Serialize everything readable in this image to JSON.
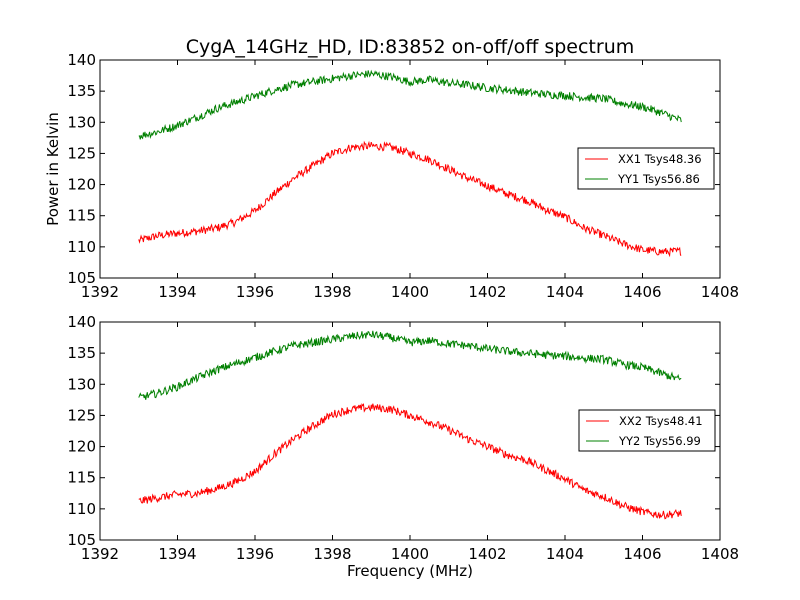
{
  "title": "CygA_14GHz_HD, ID:83852 on-off/off spectrum",
  "chart_data": [
    {
      "type": "line",
      "title": "CygA_14GHz_HD, ID:83852 on-off/off spectrum",
      "xlabel": "",
      "ylabel": "Power in Kelvin",
      "xlim": [
        1392,
        1408
      ],
      "ylim": [
        105,
        140
      ],
      "x_ticks": [
        "1392",
        "1394",
        "1396",
        "1398",
        "1400",
        "1402",
        "1404",
        "1406",
        "1408"
      ],
      "y_ticks": [
        "105",
        "110",
        "115",
        "120",
        "125",
        "130",
        "135",
        "140"
      ],
      "grid": false,
      "legend_position": "center-right",
      "series": [
        {
          "name": "XX1 Tsys48.36",
          "color": "#ff0000",
          "x": [
            1393.0,
            1393.5,
            1394.0,
            1394.5,
            1395.0,
            1395.5,
            1396.0,
            1396.5,
            1397.0,
            1397.5,
            1398.0,
            1398.5,
            1399.0,
            1399.5,
            1400.0,
            1400.5,
            1401.0,
            1401.5,
            1402.0,
            1402.5,
            1403.0,
            1403.5,
            1404.0,
            1404.5,
            1405.0,
            1405.5,
            1406.0,
            1406.5,
            1407.0
          ],
          "values": [
            111.0,
            111.8,
            112.2,
            112.5,
            113.0,
            114.0,
            115.8,
            118.5,
            121.0,
            123.0,
            125.0,
            126.0,
            126.2,
            126.0,
            125.0,
            124.0,
            122.5,
            121.0,
            119.8,
            118.5,
            117.5,
            116.0,
            114.8,
            113.0,
            111.8,
            110.5,
            109.5,
            109.2,
            109.3
          ]
        },
        {
          "name": "YY1 Tsys56.86",
          "color": "#008000",
          "x": [
            1393.0,
            1393.5,
            1394.0,
            1394.5,
            1395.0,
            1395.5,
            1396.0,
            1396.5,
            1397.0,
            1397.5,
            1398.0,
            1398.5,
            1399.0,
            1399.5,
            1400.0,
            1400.5,
            1401.0,
            1401.5,
            1402.0,
            1402.5,
            1403.0,
            1403.5,
            1404.0,
            1404.5,
            1405.0,
            1405.5,
            1406.0,
            1406.5,
            1407.0
          ],
          "values": [
            127.8,
            128.5,
            129.5,
            130.8,
            132.2,
            133.2,
            134.2,
            135.2,
            136.0,
            136.5,
            137.0,
            137.5,
            137.8,
            137.3,
            136.5,
            136.8,
            136.3,
            136.0,
            135.5,
            135.2,
            134.8,
            134.5,
            134.3,
            134.0,
            133.8,
            133.0,
            132.5,
            131.5,
            130.3
          ]
        }
      ]
    },
    {
      "type": "line",
      "title": "",
      "xlabel": "Frequency (MHz)",
      "ylabel": "",
      "xlim": [
        1392,
        1408
      ],
      "ylim": [
        105,
        140
      ],
      "x_ticks": [
        "1392",
        "1394",
        "1396",
        "1398",
        "1400",
        "1402",
        "1404",
        "1406",
        "1408"
      ],
      "y_ticks": [
        "105",
        "110",
        "115",
        "120",
        "125",
        "130",
        "135",
        "140"
      ],
      "grid": false,
      "legend_position": "center-right",
      "series": [
        {
          "name": "XX2 Tsys48.41",
          "color": "#ff0000",
          "x": [
            1393.0,
            1393.5,
            1394.0,
            1394.5,
            1395.0,
            1395.5,
            1396.0,
            1396.5,
            1397.0,
            1397.5,
            1398.0,
            1398.5,
            1399.0,
            1399.5,
            1400.0,
            1400.5,
            1401.0,
            1401.5,
            1402.0,
            1402.5,
            1403.0,
            1403.5,
            1404.0,
            1404.5,
            1405.0,
            1405.5,
            1406.0,
            1406.5,
            1407.0
          ],
          "values": [
            111.2,
            111.8,
            112.3,
            112.5,
            113.2,
            114.3,
            116.0,
            118.8,
            121.2,
            123.3,
            125.2,
            126.0,
            126.3,
            126.0,
            125.0,
            124.0,
            122.7,
            121.2,
            120.0,
            118.7,
            117.8,
            116.3,
            114.8,
            113.0,
            112.0,
            110.5,
            109.5,
            109.0,
            109.3
          ]
        },
        {
          "name": "YY2 Tsys56.99",
          "color": "#008000",
          "x": [
            1393.0,
            1393.5,
            1394.0,
            1394.5,
            1395.0,
            1395.5,
            1396.0,
            1396.5,
            1397.0,
            1397.5,
            1398.0,
            1398.5,
            1399.0,
            1399.5,
            1400.0,
            1400.5,
            1401.0,
            1401.5,
            1402.0,
            1402.5,
            1403.0,
            1403.5,
            1404.0,
            1404.5,
            1405.0,
            1405.5,
            1406.0,
            1406.5,
            1407.0
          ],
          "values": [
            127.8,
            128.6,
            129.6,
            131.0,
            132.3,
            133.3,
            134.3,
            135.3,
            136.2,
            136.7,
            137.2,
            137.7,
            138.0,
            137.5,
            136.7,
            137.0,
            136.5,
            136.2,
            135.7,
            135.3,
            135.0,
            134.7,
            134.5,
            134.2,
            134.0,
            133.2,
            132.7,
            131.7,
            130.7
          ]
        }
      ]
    }
  ]
}
